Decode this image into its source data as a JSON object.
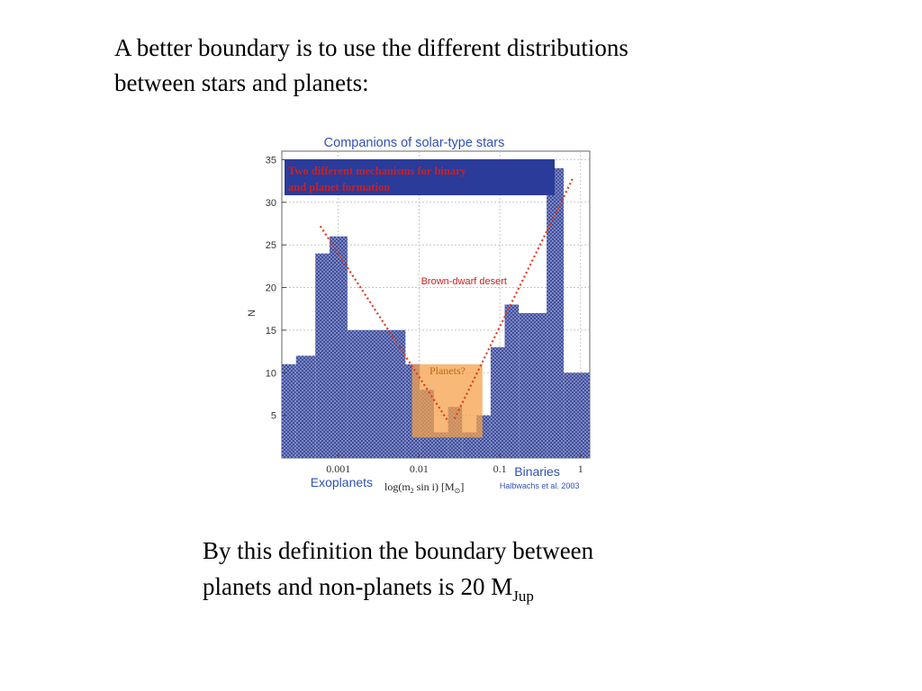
{
  "slide": {
    "intro_line1": "A better boundary is to use the different distributions",
    "intro_line2": "between stars and planets:",
    "footer_line1": "By this definition the boundary between",
    "footer_line2_main": "planets and non-planets is 20 M",
    "footer_line2_sub": "Jup"
  },
  "colors": {
    "bar_fill": "#8591c9",
    "bar_stroke": "#2b3a8c",
    "banner_bg": "#2a3b9a",
    "banner_text": "#d01f1f",
    "planets_box": "#f6a24b",
    "trend_line": "#e23a1e",
    "heading_blue": "#3150b8",
    "desert_label": "#d01f1f",
    "planets_label": "#c06a10"
  },
  "chart_data": {
    "type": "bar",
    "title": "Companions of solar-type stars",
    "ylabel": "N",
    "xlabel": "log(m",
    "xlabel_sub": "2",
    "xlabel_rest": " sin i)  [M",
    "xlabel_unit_sub": "⊙",
    "xlabel_end": "]",
    "x_scale": "log",
    "x_range": [
      0.0002,
      1.3
    ],
    "ylim": [
      0,
      36
    ],
    "y_ticks": [
      5,
      10,
      15,
      20,
      25,
      30,
      35
    ],
    "x_ticks": [
      {
        "value": 0.001,
        "label": "0.001"
      },
      {
        "value": 0.01,
        "label": "0.01"
      },
      {
        "value": 0.1,
        "label": "0.1"
      },
      {
        "value": 1,
        "label": "1"
      }
    ],
    "grid": true,
    "bins": [
      {
        "x0": 0.0002,
        "x1": 0.0003,
        "value": 11
      },
      {
        "x0": 0.0003,
        "x1": 0.00052,
        "value": 12
      },
      {
        "x0": 0.00052,
        "x1": 0.00078,
        "value": 24
      },
      {
        "x0": 0.00078,
        "x1": 0.0013,
        "value": 26
      },
      {
        "x0": 0.0013,
        "x1": 0.0068,
        "value": 15
      },
      {
        "x0": 0.0068,
        "x1": 0.0102,
        "value": 11
      },
      {
        "x0": 0.0102,
        "x1": 0.0153,
        "value": 8
      },
      {
        "x0": 0.0153,
        "x1": 0.0229,
        "value": 3
      },
      {
        "x0": 0.0229,
        "x1": 0.0342,
        "value": 6
      },
      {
        "x0": 0.0342,
        "x1": 0.0513,
        "value": 3
      },
      {
        "x0": 0.0513,
        "x1": 0.077,
        "value": 5
      },
      {
        "x0": 0.077,
        "x1": 0.115,
        "value": 13
      },
      {
        "x0": 0.115,
        "x1": 0.172,
        "value": 18
      },
      {
        "x0": 0.172,
        "x1": 0.38,
        "value": 17
      },
      {
        "x0": 0.38,
        "x1": 0.62,
        "value": 34
      },
      {
        "x0": 0.62,
        "x1": 1.3,
        "value": 10
      }
    ],
    "planets_region": {
      "x0": 0.0082,
      "x1": 0.061,
      "y0": 2.4,
      "y1": 11
    },
    "trend_lines": [
      {
        "x0": 0.0006,
        "y0": 27.2,
        "x1": 0.0233,
        "y1": 4.2
      },
      {
        "x0": 0.0275,
        "y0": 4.6,
        "x1": 0.8,
        "y1": 32.8
      }
    ],
    "banner_text_line1": "Two different mechanisms for binary",
    "banner_text_line2": "and planet formation",
    "desert_label": "Brown-dwarf desert",
    "planets_label": "Planets?",
    "left_label": "Exoplanets",
    "right_label": "Binaries",
    "credit": "Halbwachs et al. 2003"
  }
}
